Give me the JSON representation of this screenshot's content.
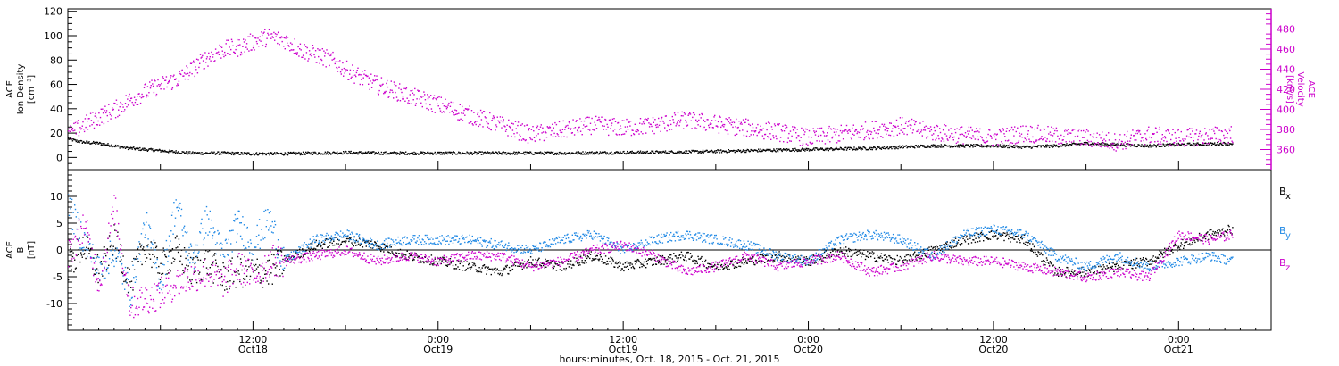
{
  "chart_data": [
    {
      "type": "scatter",
      "panel": "density-velocity",
      "ylabel_lines": [
        "ACE",
        "Ion Density",
        "[cm⁻³]"
      ],
      "ylim": [
        -10,
        122
      ],
      "yticks": [
        "0",
        "20",
        "40",
        "60",
        "80",
        "100",
        "120"
      ],
      "ylabel_right_lines": [
        "ACE",
        "Velocity",
        "[km/s]"
      ],
      "ylim_right": [
        340,
        500
      ],
      "yticks_right": [
        "360",
        "380",
        "400",
        "420",
        "440",
        "460",
        "480"
      ],
      "series": [
        {
          "axis": "left",
          "color": "#000000",
          "points": [
            [
              0,
              16
            ],
            [
              0.5,
              14
            ],
            [
              1,
              13
            ],
            [
              2,
              12
            ],
            [
              3,
              10
            ],
            [
              4,
              8
            ],
            [
              5,
              7
            ],
            [
              6,
              6
            ],
            [
              7,
              5
            ],
            [
              8,
              4
            ],
            [
              10,
              4
            ],
            [
              12,
              3.5
            ],
            [
              14,
              3.5
            ],
            [
              16,
              4
            ],
            [
              18,
              4.5
            ],
            [
              20,
              4
            ],
            [
              24,
              4
            ],
            [
              28,
              4
            ],
            [
              32,
              4
            ],
            [
              36,
              4.5
            ],
            [
              40,
              5
            ],
            [
              44,
              6
            ],
            [
              48,
              7
            ],
            [
              52,
              8
            ],
            [
              56,
              10
            ],
            [
              60,
              10
            ],
            [
              62,
              9
            ],
            [
              64,
              10
            ],
            [
              66,
              12
            ],
            [
              68,
              11
            ],
            [
              70,
              10
            ],
            [
              72,
              11
            ],
            [
              75.5,
              12
            ]
          ]
        },
        {
          "axis": "right",
          "color": "#cc00cc",
          "points": [
            [
              0,
              375
            ],
            [
              1,
              385
            ],
            [
              2,
              393
            ],
            [
              3,
              400
            ],
            [
              4,
              410
            ],
            [
              5,
              418
            ],
            [
              6,
              425
            ],
            [
              7,
              430
            ],
            [
              8,
              440
            ],
            [
              9,
              452
            ],
            [
              10,
              460
            ],
            [
              11,
              462
            ],
            [
              12,
              468
            ],
            [
              13,
              473
            ],
            [
              14,
              470
            ],
            [
              15,
              460
            ],
            [
              16,
              455
            ],
            [
              17,
              450
            ],
            [
              18,
              440
            ],
            [
              19,
              432
            ],
            [
              20,
              425
            ],
            [
              21,
              420
            ],
            [
              22,
              414
            ],
            [
              23,
              410
            ],
            [
              24,
              405
            ],
            [
              26,
              395
            ],
            [
              28,
              385
            ],
            [
              30,
              375
            ],
            [
              32,
              380
            ],
            [
              34,
              385
            ],
            [
              36,
              382
            ],
            [
              38,
              385
            ],
            [
              40,
              390
            ],
            [
              42,
              386
            ],
            [
              44,
              382
            ],
            [
              46,
              378
            ],
            [
              48,
              372
            ],
            [
              50,
              376
            ],
            [
              52,
              380
            ],
            [
              54,
              384
            ],
            [
              56,
              378
            ],
            [
              58,
              375
            ],
            [
              60,
              372
            ],
            [
              62,
              377
            ],
            [
              64,
              374
            ],
            [
              66,
              372
            ],
            [
              68,
              368
            ],
            [
              70,
              375
            ],
            [
              72,
              372
            ],
            [
              75.5,
              376
            ]
          ]
        }
      ]
    },
    {
      "type": "scatter",
      "panel": "imf",
      "ylabel_lines": [
        "ACE",
        "B",
        "[nT]"
      ],
      "ylim": [
        -15,
        15
      ],
      "yticks": [
        "-10",
        "-5",
        "0",
        "5",
        "10"
      ],
      "zero_line": true,
      "series": [
        {
          "name": "Bx",
          "legend_base": "B",
          "legend_sub": "x",
          "color": "#000000",
          "points": [
            [
              0,
              -3
            ],
            [
              1,
              1
            ],
            [
              2,
              -4
            ],
            [
              3,
              2
            ],
            [
              4,
              -6
            ],
            [
              5,
              1
            ],
            [
              6,
              -3
            ],
            [
              7,
              0
            ],
            [
              8,
              -4
            ],
            [
              9,
              -2
            ],
            [
              10,
              -5
            ],
            [
              11,
              -4
            ],
            [
              12,
              -4
            ],
            [
              13,
              -4
            ],
            [
              14,
              -2
            ],
            [
              16,
              1
            ],
            [
              18,
              2
            ],
            [
              20,
              1
            ],
            [
              22,
              -1
            ],
            [
              24,
              -2
            ],
            [
              26,
              -3
            ],
            [
              28,
              -4
            ],
            [
              30,
              -2
            ],
            [
              32,
              -3
            ],
            [
              34,
              -1
            ],
            [
              36,
              -3
            ],
            [
              38,
              -2
            ],
            [
              40,
              -1
            ],
            [
              42,
              -3
            ],
            [
              44,
              -2
            ],
            [
              46,
              -1
            ],
            [
              48,
              -2
            ],
            [
              50,
              0
            ],
            [
              52,
              -1
            ],
            [
              54,
              -2
            ],
            [
              56,
              0
            ],
            [
              58,
              2
            ],
            [
              60,
              3
            ],
            [
              62,
              2
            ],
            [
              64,
              -4
            ],
            [
              66,
              -4
            ],
            [
              68,
              -3
            ],
            [
              70,
              -2
            ],
            [
              72,
              1
            ],
            [
              74,
              3
            ],
            [
              75.5,
              4
            ]
          ]
        },
        {
          "name": "By",
          "legend_base": "B",
          "legend_sub": "y",
          "color": "#1e88e5",
          "points": [
            [
              0,
              8
            ],
            [
              1,
              2
            ],
            [
              2,
              -4
            ],
            [
              3,
              0
            ],
            [
              4,
              -8
            ],
            [
              5,
              5
            ],
            [
              6,
              -6
            ],
            [
              7,
              9
            ],
            [
              8,
              -2
            ],
            [
              9,
              6
            ],
            [
              10,
              -1
            ],
            [
              11,
              5
            ],
            [
              12,
              1
            ],
            [
              13,
              6
            ],
            [
              14,
              -2
            ],
            [
              16,
              2
            ],
            [
              18,
              3
            ],
            [
              20,
              1
            ],
            [
              22,
              2
            ],
            [
              24,
              2
            ],
            [
              26,
              2
            ],
            [
              28,
              1
            ],
            [
              30,
              0
            ],
            [
              32,
              2
            ],
            [
              34,
              3
            ],
            [
              36,
              0
            ],
            [
              38,
              2
            ],
            [
              40,
              3
            ],
            [
              42,
              2
            ],
            [
              44,
              1
            ],
            [
              46,
              -1
            ],
            [
              48,
              -2
            ],
            [
              50,
              2
            ],
            [
              52,
              3
            ],
            [
              54,
              2
            ],
            [
              56,
              -1
            ],
            [
              58,
              3
            ],
            [
              60,
              4
            ],
            [
              62,
              3
            ],
            [
              64,
              -1
            ],
            [
              66,
              -3
            ],
            [
              68,
              -1
            ],
            [
              70,
              -3
            ],
            [
              72,
              -2
            ],
            [
              74,
              -1
            ],
            [
              75.5,
              -2
            ]
          ]
        },
        {
          "name": "Bz",
          "legend_base": "B",
          "legend_sub": "z",
          "color": "#cc00cc",
          "points": [
            [
              0,
              -1
            ],
            [
              1,
              5
            ],
            [
              2,
              -6
            ],
            [
              3,
              8
            ],
            [
              4,
              -10
            ],
            [
              5,
              -9
            ],
            [
              6,
              -8
            ],
            [
              7,
              -6
            ],
            [
              8,
              -5
            ],
            [
              9,
              -4
            ],
            [
              10,
              -6
            ],
            [
              11,
              -3
            ],
            [
              12,
              -5
            ],
            [
              13,
              -2
            ],
            [
              14,
              -2
            ],
            [
              16,
              -1
            ],
            [
              18,
              0
            ],
            [
              20,
              -2
            ],
            [
              22,
              -1
            ],
            [
              24,
              -2
            ],
            [
              26,
              -1
            ],
            [
              28,
              -1
            ],
            [
              30,
              -3
            ],
            [
              32,
              -2
            ],
            [
              34,
              0
            ],
            [
              36,
              1
            ],
            [
              38,
              -1
            ],
            [
              40,
              -4
            ],
            [
              42,
              -3
            ],
            [
              44,
              -1
            ],
            [
              46,
              -3
            ],
            [
              48,
              -2
            ],
            [
              50,
              -1
            ],
            [
              52,
              -4
            ],
            [
              54,
              -3
            ],
            [
              56,
              -1
            ],
            [
              58,
              -2
            ],
            [
              60,
              -2
            ],
            [
              62,
              -3
            ],
            [
              64,
              -4
            ],
            [
              66,
              -5
            ],
            [
              68,
              -4
            ],
            [
              70,
              -5
            ],
            [
              72,
              3
            ],
            [
              74,
              2
            ],
            [
              75.5,
              3
            ]
          ]
        }
      ]
    }
  ],
  "x_axis": {
    "range_hours": [
      0,
      78
    ],
    "ticks": [
      {
        "hour": 6,
        "time": "",
        "date": ""
      },
      {
        "hour": 12,
        "time": "12:00",
        "date": "Oct18"
      },
      {
        "hour": 18,
        "time": "",
        "date": ""
      },
      {
        "hour": 24,
        "time": "0:00",
        "date": "Oct19"
      },
      {
        "hour": 30,
        "time": "",
        "date": ""
      },
      {
        "hour": 36,
        "time": "12:00",
        "date": "Oct19"
      },
      {
        "hour": 42,
        "time": "",
        "date": ""
      },
      {
        "hour": 48,
        "time": "0:00",
        "date": "Oct20"
      },
      {
        "hour": 54,
        "time": "",
        "date": ""
      },
      {
        "hour": 60,
        "time": "12:00",
        "date": "Oct20"
      },
      {
        "hour": 66,
        "time": "",
        "date": ""
      },
      {
        "hour": 72,
        "time": "0:00",
        "date": "Oct21"
      }
    ],
    "title": "hours:minutes, Oct. 18, 2015 - Oct. 21, 2015"
  },
  "colors": {
    "black": "#000000",
    "magenta": "#cc00cc",
    "blue": "#1e88e5"
  }
}
